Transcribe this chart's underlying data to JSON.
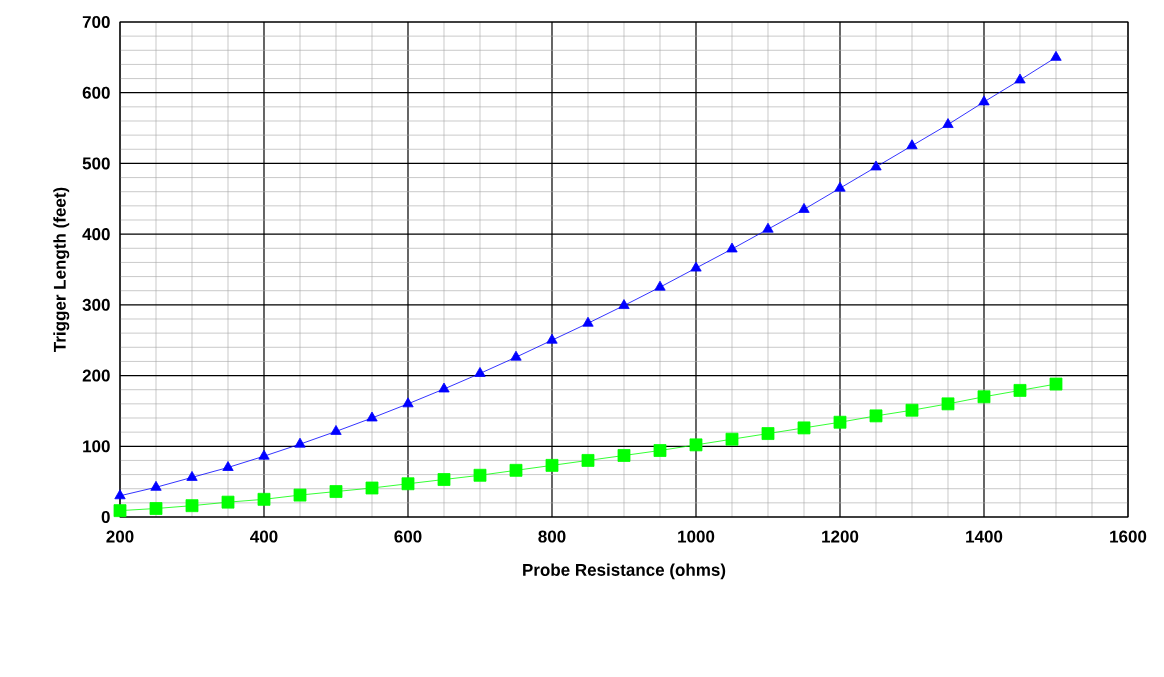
{
  "chart_data": {
    "type": "line",
    "xlabel": "Probe Resistance (ohms)",
    "ylabel": "Trigger Length (feet)",
    "xlim": [
      200,
      1600
    ],
    "xticks": [
      200,
      400,
      600,
      800,
      1000,
      1200,
      1400,
      1600
    ],
    "ylim": [
      0,
      700
    ],
    "yticks": [
      0,
      100,
      200,
      300,
      400,
      500,
      600,
      700
    ],
    "grid": true,
    "x": [
      200,
      250,
      300,
      350,
      400,
      450,
      500,
      550,
      600,
      650,
      700,
      750,
      800,
      850,
      900,
      950,
      1000,
      1050,
      1100,
      1150,
      1200,
      1250,
      1300,
      1350,
      1400,
      1450,
      1500
    ],
    "series": [
      {
        "color": "#0000ff",
        "marker": "triangle",
        "values": [
          30,
          42,
          56,
          70,
          86,
          103,
          121,
          140,
          160,
          181,
          203,
          226,
          250,
          274,
          299,
          325,
          352,
          379,
          407,
          435,
          465,
          495,
          525,
          555,
          587,
          618,
          650
        ]
      },
      {
        "color": "#00ff00",
        "marker": "square",
        "values": [
          9,
          12,
          16,
          21,
          25,
          31,
          36,
          41,
          47,
          53,
          59,
          66,
          73,
          80,
          87,
          94,
          102,
          110,
          118,
          126,
          134,
          143,
          151,
          160,
          170,
          179,
          188
        ]
      }
    ]
  }
}
